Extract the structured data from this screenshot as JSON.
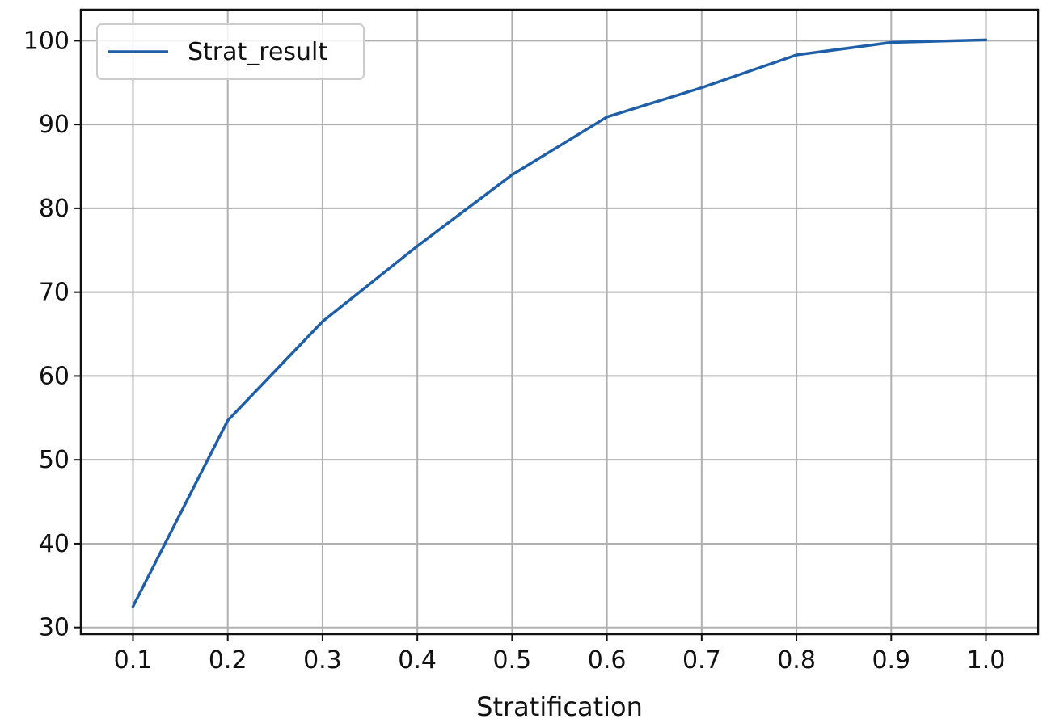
{
  "chart_data": {
    "type": "line",
    "xlabel": "Stratification",
    "ylabel": "",
    "x": [
      0.1,
      0.2,
      0.3,
      0.4,
      0.5,
      0.6,
      0.7,
      0.8,
      0.9,
      1.0
    ],
    "x_tick_labels": [
      "0.1",
      "0.2",
      "0.3",
      "0.4",
      "0.5",
      "0.6",
      "0.7",
      "0.8",
      "0.9",
      "1.0"
    ],
    "y_ticks": [
      30,
      40,
      50,
      60,
      70,
      80,
      90,
      100
    ],
    "y_tick_labels": [
      "30",
      "40",
      "50",
      "60",
      "70",
      "80",
      "90",
      "100"
    ],
    "xlim": [
      0.045,
      1.055
    ],
    "ylim": [
      29.2,
      103.7
    ],
    "grid": true,
    "legend_position": "top-left",
    "series": [
      {
        "name": "Strat_result",
        "color": "#1f5fa8",
        "values": [
          32.5,
          54.7,
          66.5,
          75.5,
          84.0,
          90.9,
          94.4,
          98.3,
          99.8,
          100.1
        ]
      }
    ]
  }
}
